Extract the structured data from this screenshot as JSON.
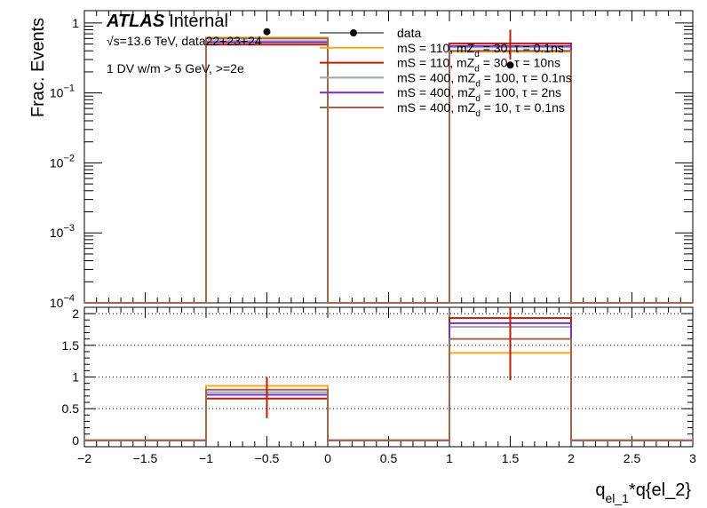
{
  "chart_data": [
    {
      "type": "line",
      "panel": "main",
      "title": "",
      "experiment": "ATLAS",
      "status": "Internal",
      "energy_label": "√s=13.6 TeV, data22+23+24",
      "selection_label": "1 DV w/m > 5 GeV, >=2e",
      "xlabel": "q_{el_1}*q{el_2}",
      "xlabel_main": "q",
      "xlabel_sub": "el_1",
      "xlabel_rest": "*q{el_2}",
      "ylabel": "Frac. Events",
      "xlim": [
        -2,
        3
      ],
      "ylim": [
        0.0001,
        1.5
      ],
      "yscale": "log",
      "bin_edges": [
        -2,
        -1,
        0,
        1,
        2,
        3
      ],
      "x_ticks": [
        "−2",
        "−1.5",
        "−1",
        "−0.5",
        "0",
        "0.5",
        "1",
        "1.5",
        "2",
        "2.5",
        "3"
      ],
      "y_ticks": [
        {
          "value": 1,
          "base": "1",
          "exp": ""
        },
        {
          "value": 0.1,
          "base": "10",
          "exp": "−1"
        },
        {
          "value": 0.01,
          "base": "10",
          "exp": "−2"
        },
        {
          "value": 0.001,
          "base": "10",
          "exp": "−3"
        },
        {
          "value": 0.0001,
          "base": "10",
          "exp": "−4"
        }
      ],
      "legend_position": "top-right",
      "data_points": {
        "name": "data",
        "x": [
          -0.5,
          1.5
        ],
        "y": [
          0.75,
          0.25
        ],
        "color": "#000000"
      },
      "series": [
        {
          "name": "mS = 110, mZ_d = 30, τ = 0.1ns",
          "legend_label": "mS = 110, mZ",
          "legend_sup": "d",
          "legend_rest": " = 30, τ = 0.1ns",
          "color": "#f7a71d",
          "values": [
            0,
            0.62,
            0,
            0.39,
            0
          ]
        },
        {
          "name": "mS = 110, mZ_d = 30, τ = 10ns",
          "legend_label": "mS = 110, mZ",
          "legend_sup": "d",
          "legend_rest": " = 30, τ = 10ns",
          "color": "#b61f03",
          "values": [
            0,
            0.49,
            0,
            0.51,
            0
          ]
        },
        {
          "name": "mS = 400, mZ_d = 100, τ = 0.1ns",
          "legend_label": "mS = 400, mZ",
          "legend_sup": "d",
          "legend_rest": " = 100, τ = 0.1ns",
          "color": "#9aa6b0",
          "values": [
            0,
            0.55,
            0,
            0.45,
            0
          ]
        },
        {
          "name": "mS = 400, mZ_d = 100, τ = 2ns",
          "legend_label": "mS = 400, mZ",
          "legend_sup": "d",
          "legend_rest": " = 100, τ = 2ns",
          "color": "#7a2cc4",
          "values": [
            0,
            0.53,
            0,
            0.47,
            0
          ]
        },
        {
          "name": "mS = 400, mZ_d = 10, τ = 0.1ns",
          "legend_label": "mS = 400, mZ",
          "legend_sup": "d",
          "legend_rest": " = 10, τ = 0.1ns",
          "color": "#a2664b",
          "values": [
            0,
            0.6,
            0,
            0.4,
            0
          ]
        }
      ],
      "grid": false
    },
    {
      "type": "line",
      "panel": "ratio",
      "xlim": [
        -2,
        3
      ],
      "ylim": [
        -0.1,
        2.1
      ],
      "y_ticks": [
        "0",
        "0.5",
        "1",
        "1.5",
        "2"
      ],
      "y_tick_values": [
        0,
        0.5,
        1,
        1.5,
        2
      ],
      "grid_y": [
        0.5,
        1,
        1.5,
        2
      ],
      "grid": true,
      "error_bars": {
        "color": "#b61f03",
        "x": [
          -0.5,
          1.5
        ],
        "low": [
          0.35,
          0.95
        ],
        "high": [
          1.0,
          2.15
        ]
      },
      "series": [
        {
          "name": "mS = 110, mZ_d = 30, τ = 0.1ns",
          "color": "#f7a71d",
          "values": [
            0,
            0.86,
            0,
            1.38,
            0
          ]
        },
        {
          "name": "mS = 110, mZ_d = 30, τ = 10ns",
          "color": "#b61f03",
          "values": [
            0,
            0.66,
            0,
            1.93,
            0
          ]
        },
        {
          "name": "mS = 400, mZ_d = 100, τ = 0.1ns",
          "color": "#9aa6b0",
          "values": [
            0,
            0.76,
            0,
            1.79,
            0
          ]
        },
        {
          "name": "mS = 400, mZ_d = 100, τ = 2ns",
          "color": "#7a2cc4",
          "values": [
            0,
            0.72,
            0,
            1.85,
            0
          ]
        },
        {
          "name": "mS = 400, mZ_d = 10, τ = 0.1ns",
          "color": "#a2664b",
          "values": [
            0,
            0.8,
            0,
            1.6,
            0
          ]
        }
      ]
    }
  ]
}
